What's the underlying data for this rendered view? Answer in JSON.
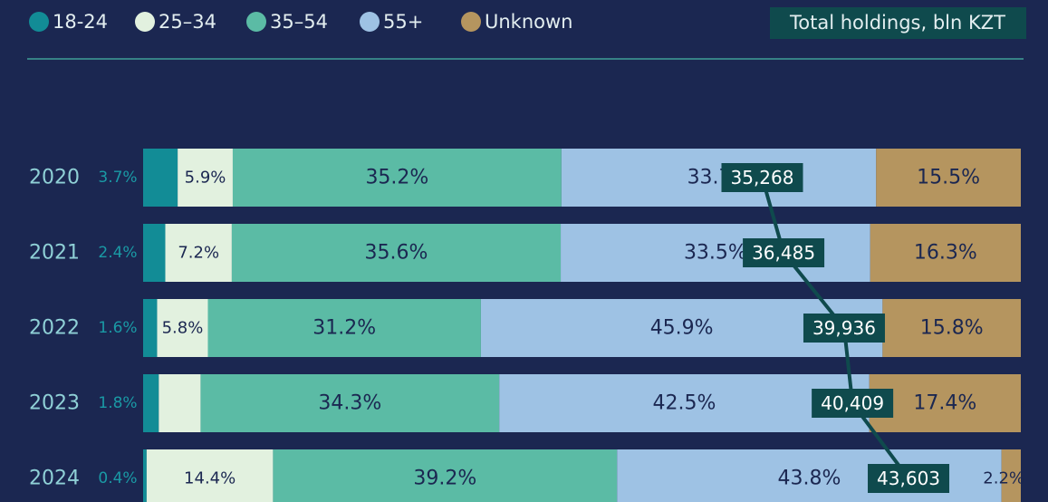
{
  "chart_data": {
    "type": "stacked-bar-line",
    "categories": [
      "2020",
      "2021",
      "2022",
      "2023",
      "2024"
    ],
    "series": [
      {
        "name": "18-24",
        "color": "#128c96",
        "values": [
          3.7,
          2.4,
          1.6,
          1.8,
          0.4
        ],
        "value_labels": [
          "3.7%",
          "2.4%",
          "1.6%",
          "1.8%",
          "0.4%"
        ]
      },
      {
        "name": "25–34",
        "color": "#e2f1df",
        "values": [
          5.9,
          7.2,
          5.8,
          4.8,
          14.4
        ],
        "value_labels": [
          "5.9%",
          "7.2%",
          "5.8%",
          "4.8%",
          "14.4%"
        ]
      },
      {
        "name": "35–54",
        "color": "#5bbba5",
        "values": [
          35.2,
          35.6,
          31.2,
          34.3,
          39.2
        ],
        "value_labels": [
          "35.2%",
          "35.6%",
          "31.2%",
          "34.3%",
          "39.2%"
        ]
      },
      {
        "name": "55+",
        "color": "#9ec2e4",
        "values": [
          33.7,
          33.5,
          45.9,
          42.5,
          43.8
        ],
        "value_labels": [
          "33.7%",
          "33.5%",
          "45.9%",
          "42.5%",
          "43.8%"
        ]
      },
      {
        "name": "Unknown",
        "color": "#b5955f",
        "values": [
          15.5,
          16.3,
          15.8,
          17.4,
          2.2
        ],
        "value_labels": [
          "15.5%",
          "16.3%",
          "15.8%",
          "17.4%",
          "2.2%"
        ]
      }
    ],
    "line": {
      "name": "Total holdings, bln KZT",
      "color": "#0f4a4d",
      "values": [
        35268,
        36485,
        39936,
        40409,
        43603
      ],
      "value_labels": [
        "35,268",
        "36,485",
        "39,936",
        "40,409",
        "43,603"
      ]
    },
    "x2lim": [
      0,
      50000
    ]
  }
}
